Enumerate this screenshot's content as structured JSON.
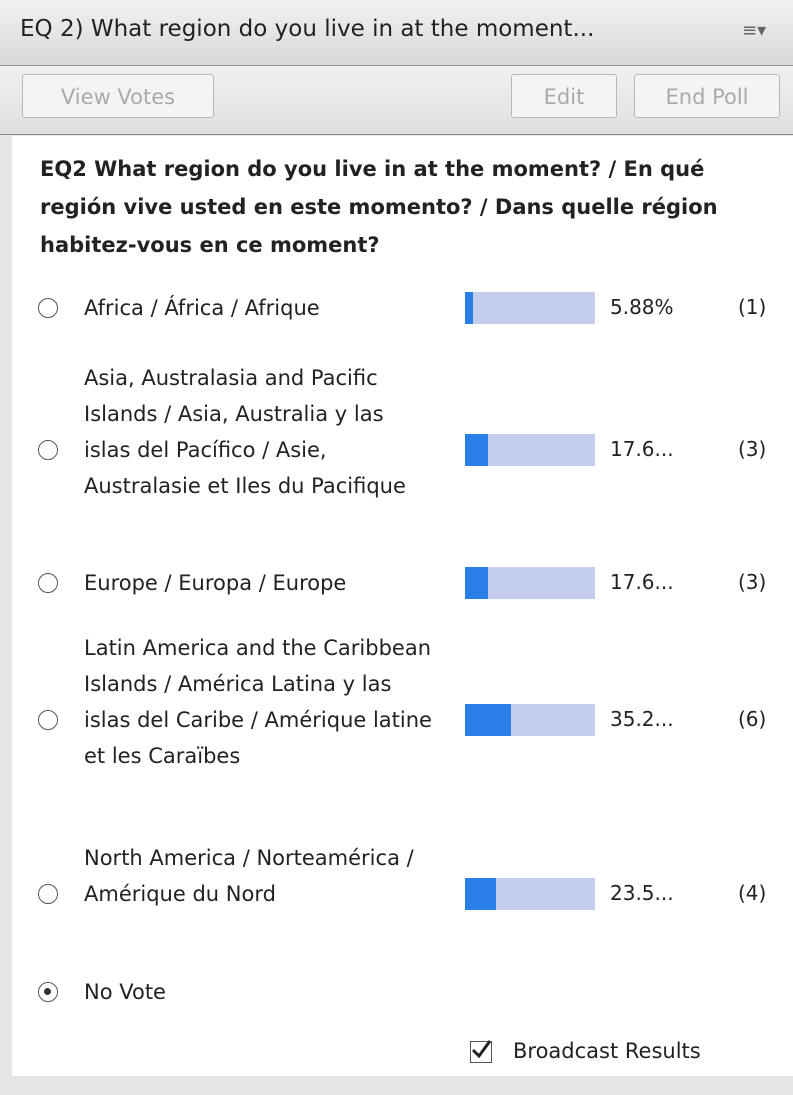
{
  "header": {
    "title": "EQ 2) What region do you live in at the moment...",
    "menu": "≡▾"
  },
  "toolbar": {
    "buttons": [
      "View Votes",
      "Edit",
      "End Poll"
    ]
  },
  "poll": {
    "question": "EQ2 What region do you live in at the moment? / En qué región vive usted en este momento? / Dans quelle région habitez-vous en ce moment?",
    "xlim": [
      0,
      100
    ],
    "options": [
      {
        "label": "Africa / África / Afrique",
        "percent": 5.88,
        "percent_label": "5.88%",
        "votes": "(1)"
      },
      {
        "label": "Asia, Australasia and Pacific Islands / Asia, Australia y las islas del Pacífico / Asie, Australasie et Iles du Pacifique",
        "percent": 17.65,
        "percent_label": "17.6...",
        "votes": "(3)"
      },
      {
        "label": "Europe / Europa / Europe",
        "percent": 17.65,
        "percent_label": "17.6...",
        "votes": "(3)"
      },
      {
        "label": "Latin America and the Caribbean Islands / América Latina y las islas del Caribe / Amérique latine et les Caraïbes",
        "percent": 35.29,
        "percent_label": "35.2...",
        "votes": "(6)"
      },
      {
        "label": "North America / Norteamérica / Amérique du Nord",
        "percent": 23.53,
        "percent_label": "23.5...",
        "votes": "(4)"
      }
    ],
    "no_vote": "No Vote",
    "broadcast": "Broadcast Results"
  }
}
